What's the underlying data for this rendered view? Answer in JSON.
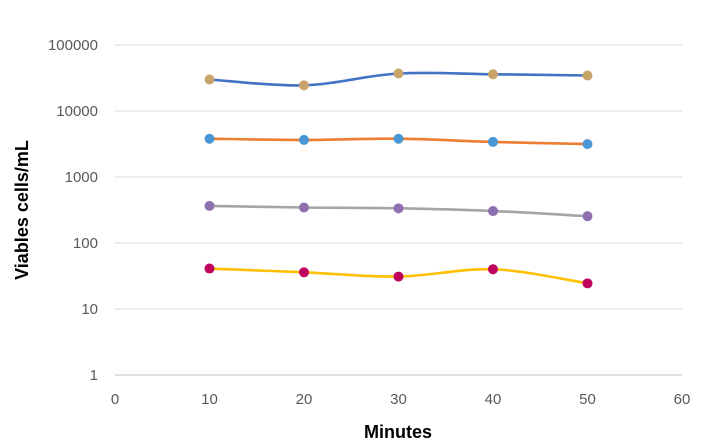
{
  "chart_data": {
    "type": "line",
    "xlabel": "Minutes",
    "ylabel": "Viables cells/mL",
    "xlim": [
      0,
      60
    ],
    "ylim": [
      1,
      100000
    ],
    "yscale": "log",
    "grid": "horizontal",
    "smooth": true,
    "x_ticks": [
      "0",
      "10",
      "20",
      "30",
      "40",
      "50",
      "60"
    ],
    "y_ticks": [
      "1",
      "10",
      "100",
      "1000",
      "10000",
      "100000"
    ],
    "x": [
      10,
      20,
      30,
      40,
      50
    ],
    "series": [
      {
        "line_color": "#4472c4",
        "marker_color": "#c9a46a",
        "values": [
          30000,
          24500,
          37000,
          36000,
          34500
        ]
      },
      {
        "line_color": "#ed7d31",
        "marker_color": "#4b97d4",
        "values": [
          3800,
          3650,
          3800,
          3400,
          3150
        ]
      },
      {
        "line_color": "#a5a5a5",
        "marker_color": "#8e6fb0",
        "values": [
          365,
          345,
          335,
          305,
          255
        ]
      },
      {
        "line_color": "#ffc000",
        "marker_color": "#c0035e",
        "values": [
          41,
          36,
          31,
          40,
          24.5
        ]
      }
    ]
  }
}
